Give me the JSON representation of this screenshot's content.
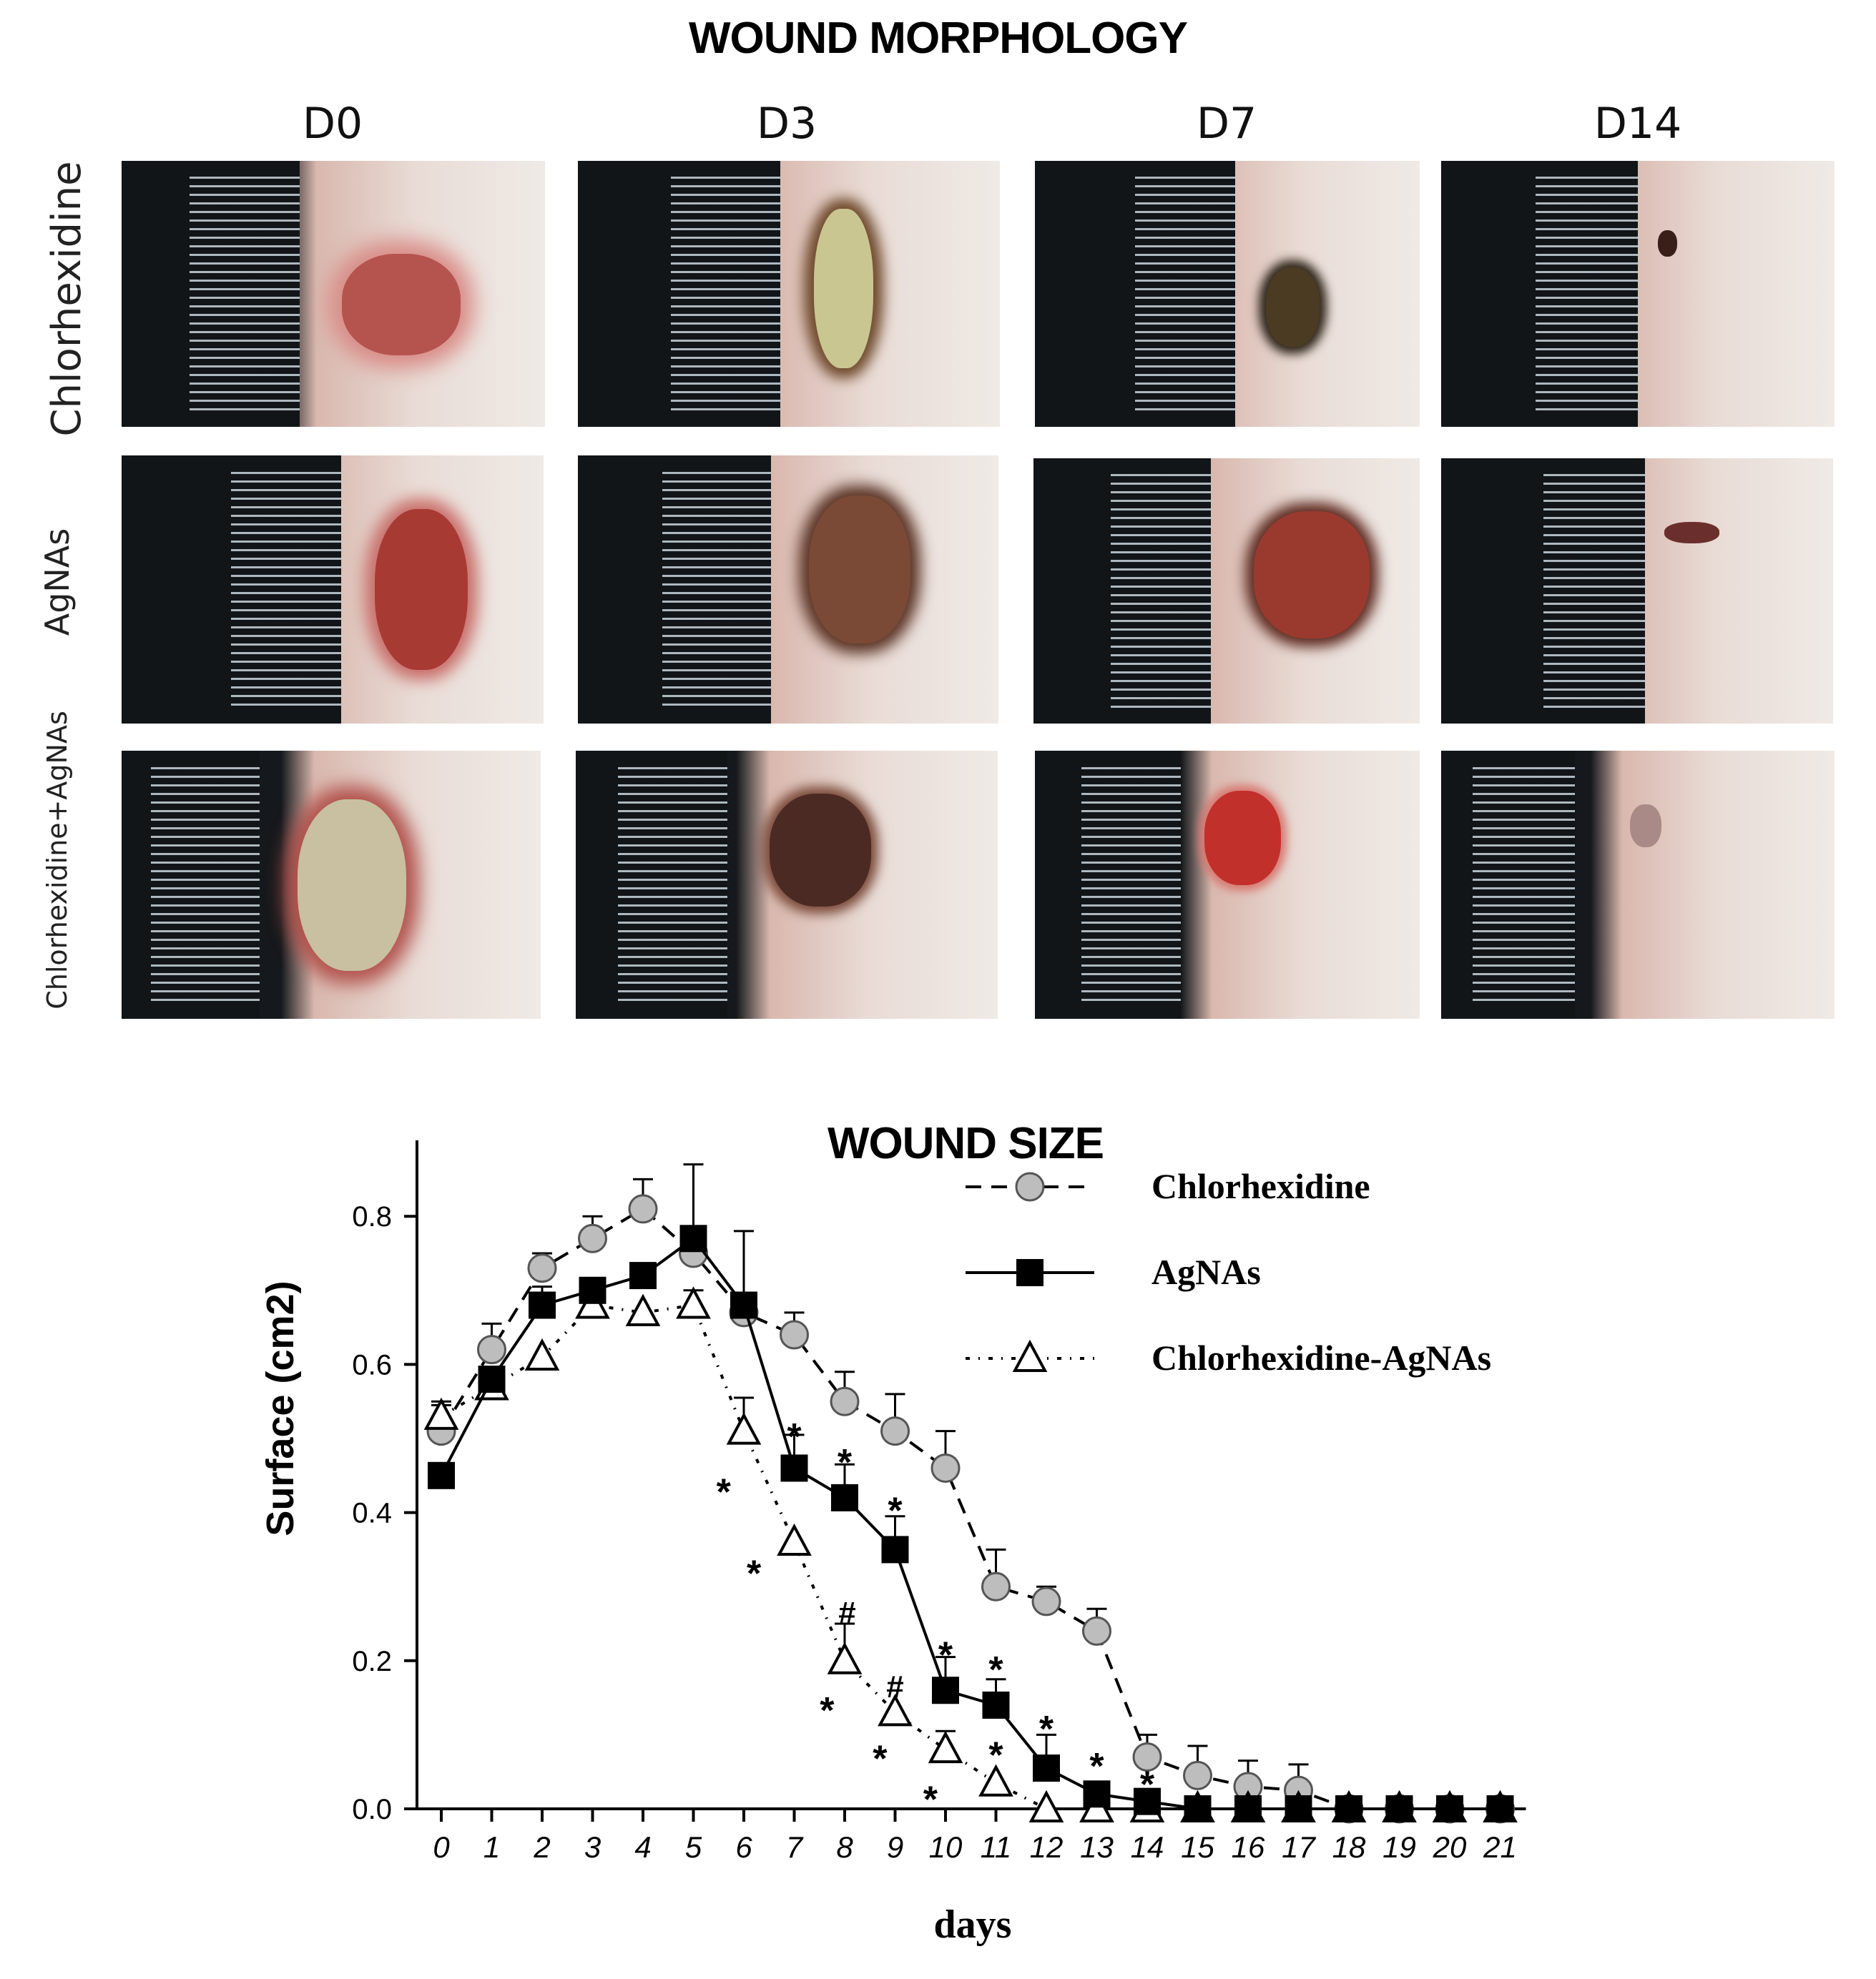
{
  "morphology": {
    "title": "WOUND MORPHOLOGY",
    "columns": [
      "D0",
      "D3",
      "D7",
      "D14"
    ],
    "rows": [
      "Chlorhexidine",
      "AgNAs",
      "Chlorhexidine+AgNAs"
    ]
  },
  "chart_data": {
    "type": "line",
    "title": "WOUND SIZE",
    "xlabel": "days",
    "ylabel": "Surface (cm2)",
    "xlim": [
      0,
      21
    ],
    "ylim": [
      0,
      0.9
    ],
    "x_ticks": [
      0,
      1,
      2,
      3,
      4,
      5,
      6,
      7,
      8,
      9,
      10,
      11,
      12,
      13,
      14,
      15,
      16,
      17,
      18,
      19,
      20,
      21
    ],
    "y_ticks": [
      "0.0",
      "0.2",
      "0.4",
      "0.6",
      "0.8"
    ],
    "legend_position": "top-right",
    "series": [
      {
        "name": "Chlorhexidine",
        "marker": "circle",
        "line": "dashed",
        "color": "#bdbdbd",
        "x": [
          0,
          1,
          2,
          3,
          4,
          5,
          6,
          7,
          8,
          9,
          10,
          11,
          12,
          13,
          14,
          15,
          16,
          17,
          18,
          19,
          20,
          21
        ],
        "values": [
          0.51,
          0.62,
          0.73,
          0.77,
          0.81,
          0.75,
          0.67,
          0.64,
          0.55,
          0.51,
          0.46,
          0.3,
          0.28,
          0.24,
          0.07,
          0.045,
          0.03,
          0.025,
          0,
          0,
          0,
          0
        ],
        "errors": [
          0.035,
          0.035,
          0.02,
          0.03,
          0.04,
          0.0,
          0.0,
          0.03,
          0.04,
          0.05,
          0.05,
          0.05,
          0.02,
          0.03,
          0.03,
          0.04,
          0.035,
          0.035,
          0,
          0,
          0,
          0
        ]
      },
      {
        "name": "AgNAs",
        "marker": "square",
        "line": "solid",
        "color": "#000000",
        "x": [
          0,
          1,
          2,
          3,
          4,
          5,
          6,
          7,
          8,
          9,
          10,
          11,
          12,
          13,
          14,
          15,
          16,
          17,
          18,
          19,
          20,
          21
        ],
        "values": [
          0.45,
          0.58,
          0.68,
          0.7,
          0.72,
          0.77,
          0.68,
          0.46,
          0.42,
          0.35,
          0.16,
          0.14,
          0.055,
          0.02,
          0.01,
          0,
          0,
          0,
          0,
          0,
          0,
          0
        ],
        "errors": [
          0.0,
          0.0,
          0.025,
          0.0,
          0.0,
          0.1,
          0.1,
          0.045,
          0.045,
          0.045,
          0.045,
          0.035,
          0.045,
          0.0,
          0.0,
          0,
          0,
          0,
          0,
          0,
          0,
          0
        ]
      },
      {
        "name": "Chlorhexidine-AgNAs",
        "marker": "triangle",
        "line": "dotted",
        "color": "#ffffff",
        "x": [
          0,
          1,
          2,
          3,
          4,
          5,
          6,
          7,
          8,
          9,
          10,
          11,
          12,
          13,
          14,
          15,
          16,
          17,
          18,
          19,
          20,
          21
        ],
        "values": [
          0.53,
          0.57,
          0.61,
          0.68,
          0.67,
          0.68,
          0.51,
          0.36,
          0.2,
          0.13,
          0.08,
          0.035,
          0.0,
          0.0,
          0.0,
          0,
          0,
          0,
          0,
          0,
          0,
          0
        ],
        "errors": [
          0.02,
          0.0,
          0.0,
          0.0,
          0.0,
          0.02,
          0.045,
          0.0,
          0.05,
          0.0,
          0.025,
          0.0,
          0.0,
          0.0,
          0.0,
          0,
          0,
          0,
          0,
          0,
          0,
          0
        ]
      }
    ],
    "annotations": [
      {
        "text": "*",
        "x": 7,
        "y": 0.505
      },
      {
        "text": "*",
        "x": 8,
        "y": 0.47
      },
      {
        "text": "*",
        "x": 9,
        "y": 0.405
      },
      {
        "text": "*",
        "x": 10,
        "y": 0.21
      },
      {
        "text": "*",
        "x": 11,
        "y": 0.19
      },
      {
        "text": "*",
        "x": 12,
        "y": 0.11
      },
      {
        "text": "*",
        "x": 13,
        "y": 0.06
      },
      {
        "text": "*",
        "x": 14,
        "y": 0.035
      },
      {
        "text": "*",
        "x": 5.6,
        "y": 0.43
      },
      {
        "text": "*",
        "x": 6.2,
        "y": 0.32
      },
      {
        "text": "#",
        "x": 8.05,
        "y": 0.27
      },
      {
        "text": "*",
        "x": 7.65,
        "y": 0.135
      },
      {
        "text": "#",
        "x": 9.0,
        "y": 0.17
      },
      {
        "text": "*",
        "x": 8.7,
        "y": 0.07
      },
      {
        "text": "*",
        "x": 9.7,
        "y": 0.015
      },
      {
        "text": "*",
        "x": 11.0,
        "y": 0.075
      },
      {
        "text": "*",
        "x": 11.9,
        "y": 0.04
      }
    ]
  }
}
